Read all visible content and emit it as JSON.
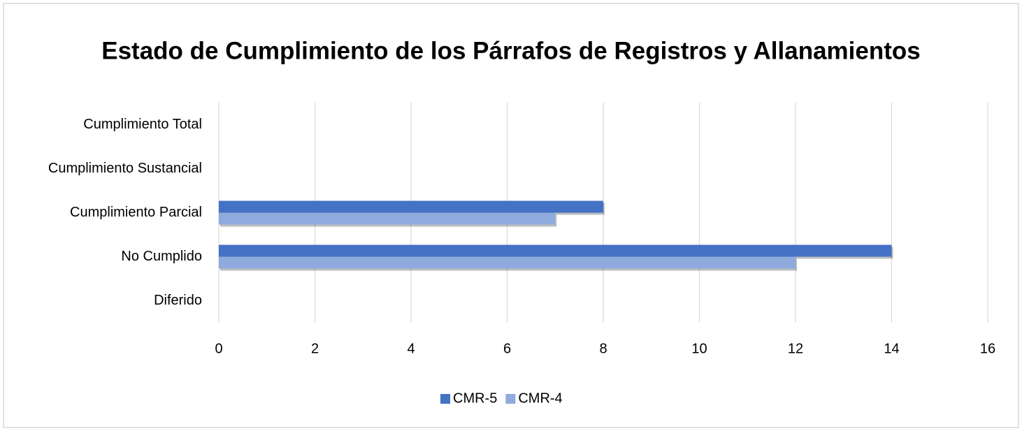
{
  "chart_data": {
    "type": "hbar",
    "title": "Estado de Cumplimiento de los Párrafos de Registros y Allanamientos",
    "categories": [
      "Cumplimiento Total",
      "Cumplimiento Sustancial",
      "Cumplimiento Parcial",
      "No Cumplido",
      "Diferido"
    ],
    "series": [
      {
        "name": "CMR-5",
        "color": "#4472c4",
        "values": [
          0,
          0,
          8,
          14,
          0
        ]
      },
      {
        "name": "CMR-4",
        "color": "#8faadc",
        "values": [
          0,
          0,
          7,
          12,
          0
        ]
      }
    ],
    "xlim": [
      0,
      16
    ],
    "xticks": [
      0,
      2,
      4,
      6,
      8,
      10,
      12,
      14,
      16
    ],
    "grid": true,
    "legend": "bottom"
  }
}
